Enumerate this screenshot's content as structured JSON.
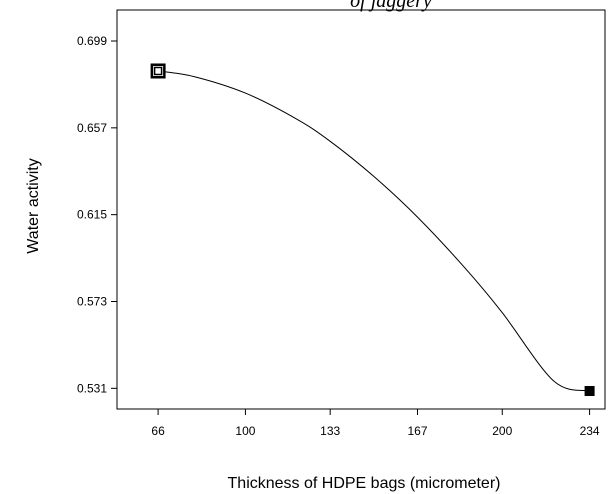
{
  "chart_data": {
    "type": "line",
    "title": "of jaggery",
    "xlabel": "Thickness of HDPE bags (micrometer)",
    "ylabel": "Water activity",
    "xlim": [
      50,
      240
    ],
    "ylim": [
      0.521,
      0.714
    ],
    "x_ticks": [
      66,
      100,
      133,
      167,
      200,
      234
    ],
    "x_tick_labels": [
      "66",
      "100",
      "133",
      "167",
      "200",
      "234"
    ],
    "y_ticks": [
      0.531,
      0.573,
      0.615,
      0.657,
      0.699
    ],
    "y_tick_labels": [
      "0.531",
      "0.573",
      "0.615",
      "0.657",
      "0.699"
    ],
    "grid": false,
    "series": [
      {
        "x": [
          66,
          80,
          100,
          120,
          133,
          150,
          167,
          185,
          200,
          220,
          234
        ],
        "y": [
          0.6845,
          0.6818,
          0.6738,
          0.6612,
          0.6505,
          0.6335,
          0.6138,
          0.5899,
          0.5676,
          0.5346,
          0.5297
        ]
      }
    ],
    "design_points": [
      {
        "x": 66,
        "y": 0.6845,
        "marker": "double-square"
      },
      {
        "x": 234,
        "y": 0.5297,
        "marker": "filled-square"
      }
    ]
  }
}
